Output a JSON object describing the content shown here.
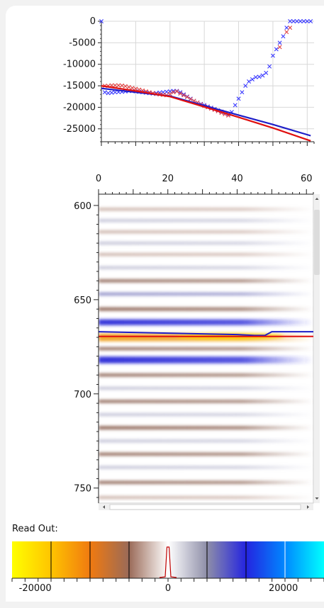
{
  "readout_label": "Read Out:",
  "chart_data": [
    {
      "type": "scatter",
      "xlim": [
        0,
        62
      ],
      "ylim": [
        -28000,
        0
      ],
      "y_ticks": [
        0,
        -5000,
        -10000,
        -15000,
        -20000,
        -25000
      ],
      "x_ticks_shown": false,
      "grid": true,
      "series": [
        {
          "color": "#3838ff",
          "marker": "x",
          "points": [
            [
              0,
              0
            ],
            [
              1,
              -16500
            ],
            [
              2,
              -16700
            ],
            [
              3,
              -16600
            ],
            [
              4,
              -16500
            ],
            [
              5,
              -16450
            ],
            [
              6,
              -16400
            ],
            [
              7,
              -16300
            ],
            [
              8,
              -16200
            ],
            [
              9,
              -16200
            ],
            [
              10,
              -16300
            ],
            [
              11,
              -16400
            ],
            [
              12,
              -16500
            ],
            [
              13,
              -16600
            ],
            [
              14,
              -16700
            ],
            [
              15,
              -16800
            ],
            [
              16,
              -16700
            ],
            [
              17,
              -16600
            ],
            [
              18,
              -16500
            ],
            [
              19,
              -16400
            ],
            [
              20,
              -16300
            ],
            [
              21,
              -16200
            ],
            [
              22,
              -16200
            ],
            [
              23,
              -16500
            ],
            [
              24,
              -17000
            ],
            [
              25,
              -17500
            ],
            [
              26,
              -18000
            ],
            [
              27,
              -18500
            ],
            [
              28,
              -18900
            ],
            [
              29,
              -19200
            ],
            [
              30,
              -19500
            ],
            [
              31,
              -19800
            ],
            [
              32,
              -20100
            ],
            [
              33,
              -20400
            ],
            [
              34,
              -20700
            ],
            [
              35,
              -21000
            ],
            [
              36,
              -21300
            ],
            [
              37,
              -21600
            ],
            [
              38,
              -21100
            ],
            [
              39,
              -19500
            ],
            [
              40,
              -18000
            ],
            [
              41,
              -16500
            ],
            [
              42,
              -15000
            ],
            [
              43,
              -14000
            ],
            [
              44,
              -13500
            ],
            [
              45,
              -13000
            ],
            [
              46,
              -12900
            ],
            [
              47,
              -12600
            ],
            [
              48,
              -12000
            ],
            [
              49,
              -10500
            ],
            [
              50,
              -8000
            ],
            [
              51,
              -6500
            ],
            [
              52,
              -5000
            ],
            [
              53,
              -3500
            ],
            [
              54,
              -1500
            ],
            [
              55,
              0
            ],
            [
              56,
              0
            ],
            [
              57,
              0
            ],
            [
              58,
              0
            ],
            [
              59,
              0
            ],
            [
              60,
              0
            ],
            [
              61,
              0
            ]
          ]
        },
        {
          "color": "#e04040",
          "marker": "x",
          "points": [
            [
              1,
              -15000
            ],
            [
              2,
              -15000
            ],
            [
              3,
              -14900
            ],
            [
              4,
              -14900
            ],
            [
              5,
              -14900
            ],
            [
              6,
              -14950
            ],
            [
              7,
              -15100
            ],
            [
              8,
              -15300
            ],
            [
              9,
              -15500
            ],
            [
              10,
              -15700
            ],
            [
              11,
              -15900
            ],
            [
              12,
              -16100
            ],
            [
              13,
              -16300
            ],
            [
              14,
              -16500
            ],
            [
              15,
              -16700
            ],
            [
              16,
              -16900
            ],
            [
              17,
              -17000
            ],
            [
              18,
              -17100
            ],
            [
              19,
              -17200
            ],
            [
              20,
              -16900
            ],
            [
              21,
              -16500
            ],
            [
              22,
              -16300
            ],
            [
              23,
              -16800
            ],
            [
              24,
              -17200
            ],
            [
              25,
              -17600
            ],
            [
              26,
              -18100
            ],
            [
              27,
              -18500
            ],
            [
              28,
              -18900
            ],
            [
              29,
              -19300
            ],
            [
              30,
              -19700
            ],
            [
              31,
              -20000
            ],
            [
              32,
              -20300
            ],
            [
              33,
              -20600
            ],
            [
              34,
              -20900
            ],
            [
              35,
              -21300
            ],
            [
              36,
              -21600
            ],
            [
              37,
              -21900
            ],
            [
              52,
              -6000
            ],
            [
              54,
              -2500
            ],
            [
              55,
              -1500
            ]
          ]
        },
        {
          "color": "#1e1ec8",
          "marker": "line",
          "points": [
            [
              0,
              -15600
            ],
            [
              10,
              -16500
            ],
            [
              20,
              -17400
            ],
            [
              30,
              -19600
            ],
            [
              40,
              -21800
            ],
            [
              50,
              -24000
            ],
            [
              61,
              -26600
            ]
          ]
        },
        {
          "color": "#e01010",
          "marker": "line",
          "points": [
            [
              0,
              -15000
            ],
            [
              10,
              -16200
            ],
            [
              20,
              -17500
            ],
            [
              30,
              -19900
            ],
            [
              40,
              -22300
            ],
            [
              50,
              -24800
            ],
            [
              61,
              -27800
            ]
          ]
        }
      ]
    },
    {
      "type": "heatmap",
      "xlim": [
        0,
        62
      ],
      "ylim": [
        594,
        758
      ],
      "x_ticks": [
        0,
        20,
        40,
        60
      ],
      "y_ticks": [
        600,
        650,
        700,
        750
      ],
      "bands": [
        {
          "y": 602,
          "value": -4000
        },
        {
          "y": 608,
          "value": 3500
        },
        {
          "y": 614,
          "value": -3000
        },
        {
          "y": 620,
          "value": 3500
        },
        {
          "y": 626,
          "value": -4000
        },
        {
          "y": 633,
          "value": 5000
        },
        {
          "y": 640,
          "value": -6000
        },
        {
          "y": 647,
          "value": 6000
        },
        {
          "y": 655,
          "value": -7000
        },
        {
          "y": 662,
          "value": 12000
        },
        {
          "y": 670,
          "value": -16000
        },
        {
          "y": 676,
          "value": -6000
        },
        {
          "y": 682,
          "value": 14000
        },
        {
          "y": 690,
          "value": -6000
        },
        {
          "y": 697,
          "value": 5000
        },
        {
          "y": 704,
          "value": -6000
        },
        {
          "y": 711,
          "value": 3000
        },
        {
          "y": 718,
          "value": -7000
        },
        {
          "y": 725,
          "value": 2500
        },
        {
          "y": 732,
          "value": -6000
        },
        {
          "y": 739,
          "value": 2500
        },
        {
          "y": 747,
          "value": -6000
        },
        {
          "y": 755,
          "value": -5000
        }
      ],
      "lines": [
        {
          "color": "#1e1ec8",
          "points": [
            [
              0,
              667
            ],
            [
              40,
              668.5
            ],
            [
              45,
              669
            ],
            [
              48,
              669
            ],
            [
              50,
              667
            ],
            [
              62,
              667
            ]
          ]
        },
        {
          "color": "#e01010",
          "points": [
            [
              0,
              669.5
            ],
            [
              62,
              669.5
            ]
          ]
        }
      ]
    },
    {
      "type": "colorbar",
      "xlim": [
        -24000,
        24000
      ],
      "tick_labels": [
        -20000,
        0,
        20000
      ],
      "tick_label_texts": [
        "-20000",
        "0",
        "20000"
      ],
      "colors": [
        {
          "value": -24000,
          "color": "#ffff00"
        },
        {
          "value": -18000,
          "color": "#ffc400"
        },
        {
          "value": -12000,
          "color": "#f07a10"
        },
        {
          "value": -6000,
          "color": "#9a6a58"
        },
        {
          "value": 0,
          "color": "#ffffff"
        },
        {
          "value": 6000,
          "color": "#8e8ea8"
        },
        {
          "value": 12000,
          "color": "#2424e0"
        },
        {
          "value": 18000,
          "color": "#0088ff"
        },
        {
          "value": 24000,
          "color": "#00ffff"
        }
      ],
      "divider_values": [
        -18000,
        -12000,
        -6000,
        6000,
        12000,
        18000
      ]
    }
  ]
}
